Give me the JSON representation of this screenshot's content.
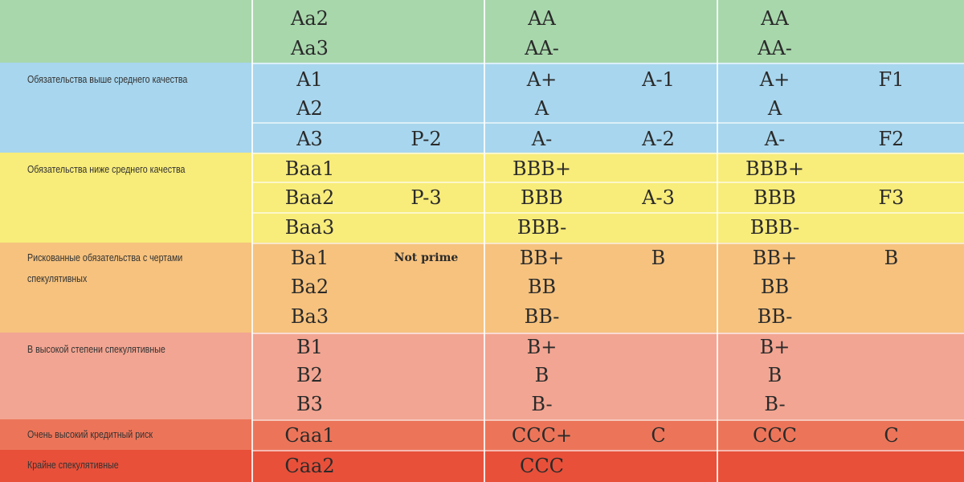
{
  "colors": {
    "green": "#a8d7ac",
    "blue": "#a8d6ee",
    "yellow": "#f8ec7a",
    "orange": "#f6c27e",
    "salmon": "#f2a592",
    "red1": "#ec7559",
    "red2": "#e8503a"
  },
  "categories": {
    "above_average": "Обязательства выше среднего качества",
    "below_average": "Обязательства ниже среднего качества",
    "risky": "Рискованные обязательства с чертами спекулятивных",
    "highly_speculative": "В высокой степени спекулятивные",
    "very_high_risk": "Очень высокий кредитный риск",
    "extremely_speculative": "Крайне спекулятивные"
  },
  "rows": [
    {
      "c1": "Aa2",
      "c3": "AA",
      "c5": "AA"
    },
    {
      "c1": "Aa3",
      "c3": "AA-",
      "c5": "AA-"
    },
    {
      "c1": "A1",
      "c3": "A+",
      "c4": "A-1",
      "c5": "A+",
      "c6": "F1"
    },
    {
      "c1": "A2",
      "c3": "A",
      "c5": "A"
    },
    {
      "c1": "A3",
      "c2": "P-2",
      "c3": "A-",
      "c4": "A-2",
      "c5": "A-",
      "c6": "F2"
    },
    {
      "c1": "Baa1",
      "c3": "BBB+",
      "c5": "BBB+"
    },
    {
      "c1": "Baa2",
      "c2": "P-3",
      "c3": "BBB",
      "c4": "A-3",
      "c5": "BBB",
      "c6": "F3"
    },
    {
      "c1": "Baa3",
      "c3": "BBB-",
      "c5": "BBB-"
    },
    {
      "c1": "Ba1",
      "c2": "Not prime",
      "c3": "BB+",
      "c4": "B",
      "c5": "BB+",
      "c6": "B"
    },
    {
      "c1": "Ba2",
      "c3": "BB",
      "c5": "BB"
    },
    {
      "c1": "Ba3",
      "c3": "BB-",
      "c5": "BB-"
    },
    {
      "c1": "B1",
      "c3": "B+",
      "c5": "B+"
    },
    {
      "c1": "B2",
      "c3": "B",
      "c5": "B"
    },
    {
      "c1": "B3",
      "c3": "B-",
      "c5": "B-"
    },
    {
      "c1": "Caa1",
      "c3": "CCC+",
      "c4": "C",
      "c5": "CCC",
      "c6": "C"
    },
    {
      "c1": "Caa2",
      "c3": "CCC"
    }
  ]
}
